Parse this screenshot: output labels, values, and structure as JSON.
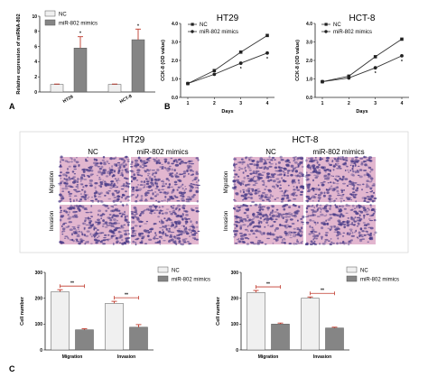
{
  "panels": {
    "a_letter": "A",
    "b_letter": "B",
    "c_letter": "C"
  },
  "colors": {
    "nc_bar": "#f0f0f0",
    "mimic_bar": "#858585",
    "error_bar": "#c0392b",
    "axis": "#222222",
    "line": "#333333",
    "tissue_base": "#e2b6cf",
    "tissue_dot": "#4a3c88"
  },
  "micrographs": {
    "ht29_title": "HT29",
    "hct8_title": "HCT-8",
    "nc_label": "NC",
    "mimic_label": "miR-802 mimics",
    "migration_label": "Migration",
    "invasion_label": "Invasion"
  },
  "chart_data": [
    {
      "id": "A",
      "type": "bar",
      "categories": [
        "HT29",
        "HCT-8"
      ],
      "series": [
        {
          "name": "NC",
          "values": [
            1.0,
            1.0
          ],
          "errors": [
            0.05,
            0.05
          ]
        },
        {
          "name": "miR-802 mimics",
          "values": [
            5.8,
            6.9
          ],
          "errors": [
            1.5,
            1.4
          ]
        }
      ],
      "ylabel": "Relative expression of miRNA-802",
      "ylim": [
        0,
        10
      ],
      "yticks": [
        "0",
        "2",
        "4",
        "6",
        "8",
        "10"
      ],
      "annotations": [
        "*",
        "*"
      ],
      "legend": [
        "NC",
        "miR-802 mimics"
      ]
    },
    {
      "id": "B1",
      "type": "line",
      "title": "HT29",
      "x": [
        1,
        2,
        3,
        4
      ],
      "xticks": [
        "1",
        "2",
        "3",
        "4"
      ],
      "xlabel": "Days",
      "ylabel": "CCK-8 (OD value)",
      "ylim": [
        0.0,
        4.0
      ],
      "yticks": [
        "0.0",
        "1.0",
        "2.0",
        "3.0",
        "4.0"
      ],
      "series": [
        {
          "name": "NC",
          "values": [
            0.75,
            1.45,
            2.45,
            3.35
          ]
        },
        {
          "name": "miR-802 mimics",
          "values": [
            0.75,
            1.25,
            1.85,
            2.4
          ]
        }
      ],
      "annotations": [
        "*",
        "*"
      ],
      "legend": [
        "NC",
        "miR-802 mimics"
      ]
    },
    {
      "id": "B2",
      "type": "line",
      "title": "HCT-8",
      "x": [
        1,
        2,
        3,
        4
      ],
      "xticks": [
        "1",
        "2",
        "3",
        "4"
      ],
      "xlabel": "Days",
      "ylabel": "CCK-8 (OD value)",
      "ylim": [
        0.0,
        4.0
      ],
      "yticks": [
        "0.0",
        "1.0",
        "2.0",
        "3.0",
        "4.0"
      ],
      "series": [
        {
          "name": "NC",
          "values": [
            0.85,
            1.15,
            2.2,
            3.15
          ]
        },
        {
          "name": "miR-802 mimics",
          "values": [
            0.85,
            1.05,
            1.6,
            2.25
          ]
        }
      ],
      "annotations": [
        "*",
        "*"
      ],
      "legend": [
        "NC",
        "miR-802 mimics"
      ]
    },
    {
      "id": "C1",
      "type": "bar",
      "categories": [
        "Migration",
        "Invasion"
      ],
      "series": [
        {
          "name": "NC",
          "values": [
            225,
            180
          ],
          "errors": [
            8,
            8
          ]
        },
        {
          "name": "miR-802 mimics",
          "values": [
            78,
            88
          ],
          "errors": [
            4,
            10
          ]
        }
      ],
      "ylabel": "Cell number",
      "ylim": [
        0,
        300
      ],
      "yticks": [
        "0",
        "100",
        "200",
        "300"
      ],
      "annotations": [
        "**",
        "**"
      ],
      "legend": [
        "NC",
        "miR-802 mimics"
      ]
    },
    {
      "id": "C2",
      "type": "bar",
      "categories": [
        "Migration",
        "Invasion"
      ],
      "series": [
        {
          "name": "NC",
          "values": [
            222,
            200
          ],
          "errors": [
            8,
            5
          ]
        },
        {
          "name": "miR-802 mimics",
          "values": [
            100,
            85
          ],
          "errors": [
            4,
            3
          ]
        }
      ],
      "ylabel": "Cell number",
      "ylim": [
        0,
        300
      ],
      "yticks": [
        "0",
        "100",
        "200",
        "300"
      ],
      "annotations": [
        "**",
        "**"
      ],
      "legend": [
        "NC",
        "miR-802 mimics"
      ]
    }
  ]
}
